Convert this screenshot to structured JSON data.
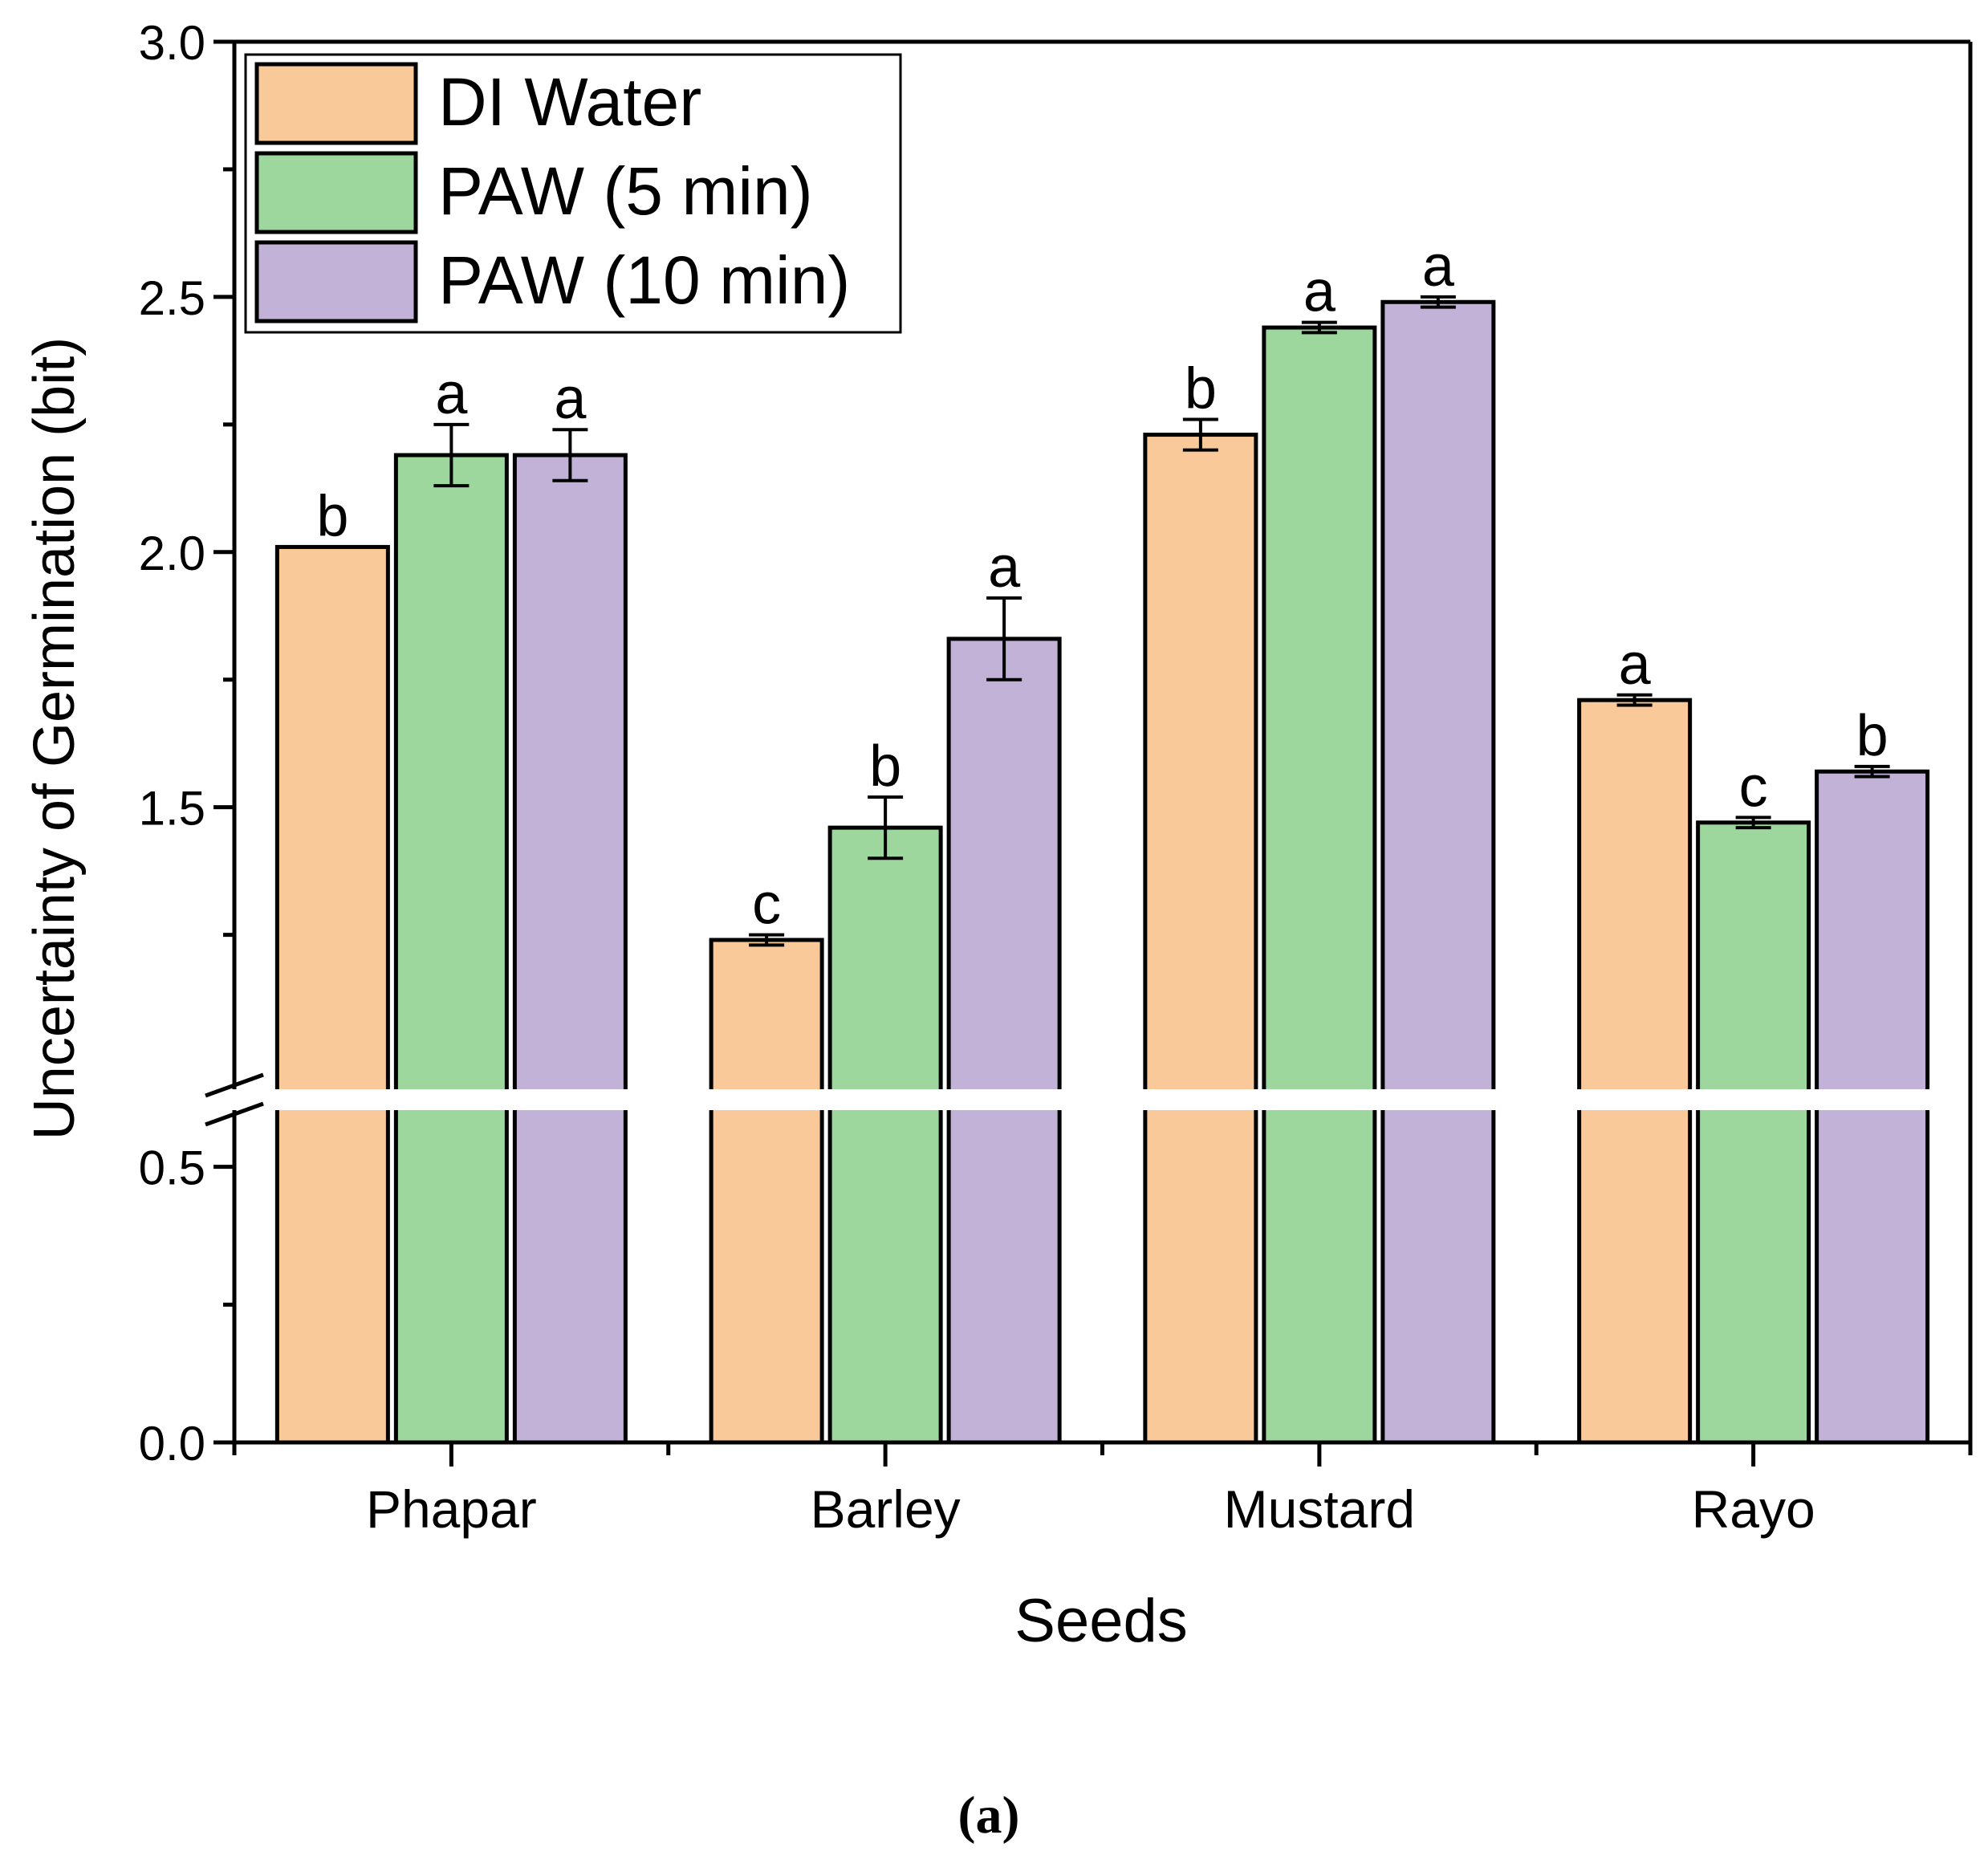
{
  "chart_data": {
    "type": "bar",
    "title": "",
    "xlabel": "Seeds",
    "ylabel": "Uncertainty of Germination (bit)",
    "panel_label": "(a)",
    "categories": [
      "Phapar",
      "Barley",
      "Mustard",
      "Rayo"
    ],
    "series": [
      {
        "name": "DI Water",
        "color": "#F9C99A",
        "values": [
          2.01,
          1.24,
          2.23,
          1.71
        ],
        "errors": [
          0.0,
          0.01,
          0.03,
          0.01
        ],
        "letters": [
          "b",
          "c",
          "b",
          "a"
        ]
      },
      {
        "name": "PAW (5 min)",
        "color": "#9DD79E",
        "values": [
          2.19,
          1.46,
          2.44,
          1.47
        ],
        "errors": [
          0.06,
          0.06,
          0.01,
          0.01
        ],
        "letters": [
          "a",
          "b",
          "a",
          "c"
        ]
      },
      {
        "name": "PAW (10 min)",
        "color": "#C3B2D8",
        "values": [
          2.19,
          1.83,
          2.49,
          1.57
        ],
        "errors": [
          0.05,
          0.08,
          0.01,
          0.01
        ],
        "letters": [
          "a",
          "a",
          "a",
          "b"
        ]
      }
    ],
    "ylim": [
      0,
      3.0
    ],
    "axis_break": [
      0.6,
      1.1
    ],
    "yticks": [
      0.0,
      0.5,
      1.5,
      2.0,
      2.5,
      3.0
    ],
    "ytick_labels": [
      "0.0",
      "0.5",
      "1.5",
      "2.0",
      "2.5",
      "3.0"
    ],
    "legend_position": "top-left",
    "grid": false
  }
}
